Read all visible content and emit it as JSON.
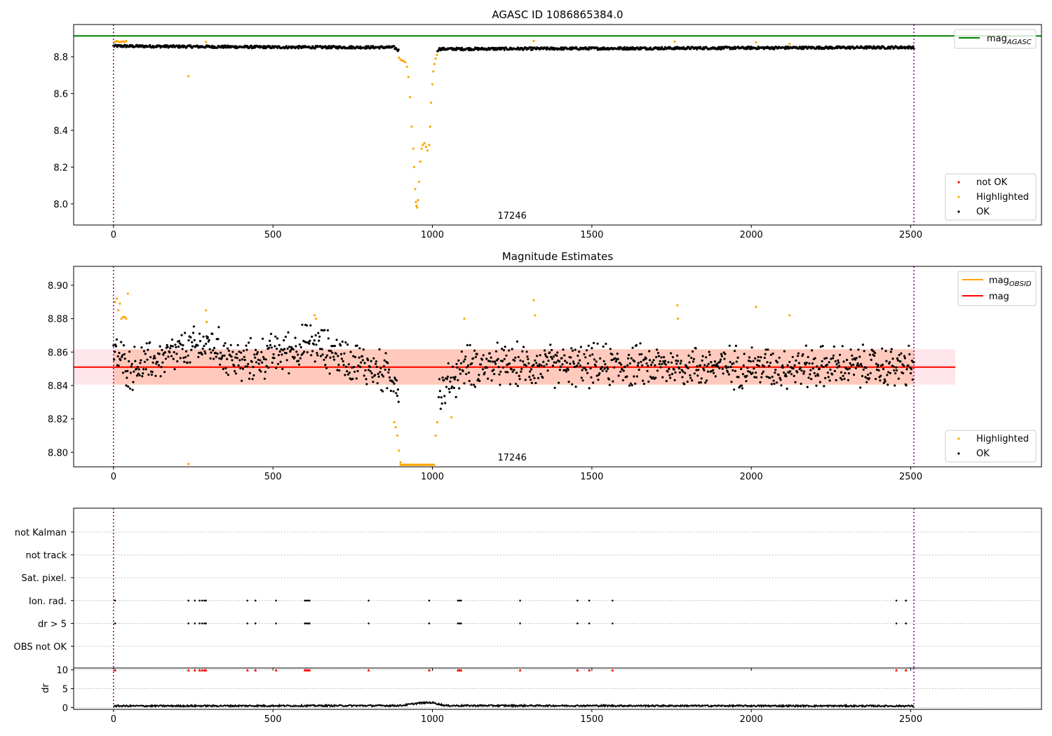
{
  "chart_data": [
    {
      "type": "scatter",
      "title": "AGASC ID 1086865384.0",
      "xlim": [
        -125,
        2910
      ],
      "ylim": [
        7.885,
        8.975
      ],
      "xticks": [
        0,
        500,
        1000,
        1500,
        2000,
        2500
      ],
      "yticks": [
        8.0,
        8.2,
        8.4,
        8.6,
        8.8
      ],
      "ytick_labels": [
        "8.0",
        "8.2",
        "8.4",
        "8.6",
        "8.8"
      ],
      "obsid_label": "17246",
      "obsid_label_x": 1250,
      "obs_bounds": [
        0,
        2510
      ],
      "hline": {
        "name": "mag$_{AGASC}$",
        "label": "mag",
        "sub": "AGASC",
        "y": 8.913,
        "x_range": [
          -125,
          2910
        ],
        "color": "#008000"
      },
      "legend_top": {
        "position": "upper right",
        "entries": [
          "mag AGASC"
        ]
      },
      "legend_bottom": {
        "position": "lower right",
        "entries": [
          {
            "name": "not OK",
            "color": "#ff0000"
          },
          {
            "name": "Highlighted",
            "color": "#ffa500"
          },
          {
            "name": "OK",
            "color": "#000000"
          }
        ]
      },
      "series": {
        "ok": {
          "color": "#000000",
          "x_range": [
            0,
            2510
          ],
          "profile": [
            [
              0,
              8.858
            ],
            [
              500,
              8.852
            ],
            [
              880,
              8.851
            ],
            [
              905,
              8.82
            ],
            [
              1010,
              8.82
            ],
            [
              1020,
              8.842
            ],
            [
              2510,
              8.851
            ]
          ],
          "jitter": 0.014
        },
        "highlighted": {
          "color": "#ffa500",
          "points": [
            [
              5,
              8.882
            ],
            [
              10,
              8.885
            ],
            [
              15,
              8.882
            ],
            [
              20,
              8.879
            ],
            [
              25,
              8.882
            ],
            [
              30,
              8.883
            ],
            [
              35,
              8.88
            ],
            [
              40,
              8.886
            ],
            [
              235,
              8.694
            ],
            [
              290,
              8.88
            ],
            [
              895,
              8.795
            ],
            [
              900,
              8.784
            ],
            [
              905,
              8.78
            ],
            [
              910,
              8.776
            ],
            [
              915,
              8.77
            ],
            [
              920,
              8.745
            ],
            [
              925,
              8.69
            ],
            [
              930,
              8.58
            ],
            [
              935,
              8.42
            ],
            [
              940,
              8.3
            ],
            [
              943,
              8.2
            ],
            [
              946,
              8.08
            ],
            [
              948,
              8.01
            ],
            [
              950,
              7.99
            ],
            [
              952,
              7.98
            ],
            [
              955,
              8.02
            ],
            [
              958,
              8.12
            ],
            [
              962,
              8.23
            ],
            [
              966,
              8.3
            ],
            [
              970,
              8.32
            ],
            [
              975,
              8.33
            ],
            [
              980,
              8.31
            ],
            [
              985,
              8.29
            ],
            [
              990,
              8.32
            ],
            [
              993,
              8.42
            ],
            [
              996,
              8.55
            ],
            [
              1000,
              8.65
            ],
            [
              1003,
              8.72
            ],
            [
              1006,
              8.76
            ],
            [
              1010,
              8.79
            ],
            [
              1014,
              8.81
            ],
            [
              1318,
              8.886
            ],
            [
              1760,
              8.882
            ],
            [
              2015,
              8.878
            ],
            [
              2120,
              8.87
            ]
          ]
        },
        "not_ok": {
          "color": "#ff0000",
          "points": []
        }
      }
    },
    {
      "type": "scatter",
      "title": "Magnitude Estimates",
      "xlim": [
        -125,
        2910
      ],
      "ylim": [
        8.7913,
        8.9113
      ],
      "xticks": [
        0,
        500,
        1000,
        1500,
        2000,
        2500
      ],
      "yticks": [
        8.8,
        8.82,
        8.84,
        8.86,
        8.88,
        8.9
      ],
      "ytick_labels": [
        "8.80",
        "8.82",
        "8.84",
        "8.86",
        "8.88",
        "8.90"
      ],
      "obsid_label": "17246",
      "obsid_label_x": 1250,
      "obs_bounds": [
        0,
        2510
      ],
      "lines": [
        {
          "name": "mag$_{OBSID}$",
          "label": "mag",
          "sub": "OBSID",
          "y": 8.851,
          "x_range": [
            0,
            2510
          ],
          "color": "#ffa500"
        },
        {
          "name": "mag",
          "label": "mag",
          "sub": "",
          "y": 8.851,
          "x_range": [
            -125,
            2640
          ],
          "color": "#ff0000"
        }
      ],
      "bands": [
        {
          "y_range": [
            8.8405,
            8.8617
          ],
          "x_range": [
            -125,
            2640
          ],
          "color": "#ffc0cb"
        },
        {
          "y_range": [
            8.8405,
            8.8617
          ],
          "x_range": [
            0,
            2510
          ],
          "color": "#ffa07a"
        }
      ],
      "legend_top": {
        "position": "upper right",
        "entries": [
          "mag OBSID",
          "mag"
        ]
      },
      "legend_bottom": {
        "position": "lower right",
        "entries": [
          {
            "name": "Highlighted",
            "color": "#ffa500"
          },
          {
            "name": "OK",
            "color": "#000000"
          }
        ]
      },
      "series": {
        "ok": {
          "color": "#000000",
          "x_range": [
            0,
            2510
          ],
          "profile": [
            [
              0,
              8.86
            ],
            [
              50,
              8.85
            ],
            [
              300,
              8.865
            ],
            [
              400,
              8.853
            ],
            [
              620,
              8.865
            ],
            [
              880,
              8.845
            ],
            [
              905,
              8.835
            ],
            [
              1000,
              8.835
            ],
            [
              1025,
              8.835
            ],
            [
              1100,
              8.852
            ],
            [
              2510,
              8.851
            ]
          ],
          "jitter": 0.012
        },
        "highlighted": {
          "color": "#ffa500",
          "points": [
            [
              5,
              8.89
            ],
            [
              10,
              8.892
            ],
            [
              15,
              8.885
            ],
            [
              20,
              8.889
            ],
            [
              25,
              8.88
            ],
            [
              30,
              8.881
            ],
            [
              35,
              8.881
            ],
            [
              40,
              8.88
            ],
            [
              45,
              8.895
            ],
            [
              235,
              8.793
            ],
            [
              290,
              8.885
            ],
            [
              292,
              8.878
            ],
            [
              630,
              8.882
            ],
            [
              635,
              8.88
            ],
            [
              880,
              8.818
            ],
            [
              885,
              8.815
            ],
            [
              890,
              8.81
            ],
            [
              895,
              8.801
            ],
            [
              900,
              8.794
            ],
            [
              1060,
              8.821
            ],
            [
              1010,
              8.81
            ],
            [
              1015,
              8.818
            ],
            [
              1100,
              8.88
            ],
            [
              1318,
              8.891
            ],
            [
              1322,
              8.882
            ],
            [
              1768,
              8.888
            ],
            [
              1770,
              8.88
            ],
            [
              2015,
              8.887
            ],
            [
              2120,
              8.882
            ]
          ]
        },
        "clipped": {
          "color": "#ffa500",
          "x_range": [
            900,
            1005
          ],
          "y": 8.7925
        }
      }
    },
    {
      "type": "scatter",
      "xlim": [
        -125,
        2910
      ],
      "xticks": [
        0,
        500,
        1000,
        1500,
        2000,
        2500
      ],
      "obs_bounds": [
        0,
        2510
      ],
      "flag_rows": [
        "not Kalman",
        "not track",
        "Sat. pixel.",
        "Ion. rad.",
        "dr > 5",
        "OBS not OK"
      ],
      "flag_points": {
        "Ion. rad.": [
          5,
          235,
          255,
          270,
          278,
          285,
          290,
          420,
          445,
          510,
          600,
          605,
          610,
          615,
          800,
          990,
          1080,
          1085,
          1090,
          1275,
          1455,
          1492,
          1565,
          2455,
          2485
        ],
        "dr > 5": [
          5,
          235,
          255,
          270,
          278,
          285,
          290,
          420,
          445,
          510,
          600,
          605,
          610,
          615,
          800,
          990,
          1080,
          1085,
          1090,
          1275,
          1455,
          1492,
          1565,
          2455,
          2485
        ]
      }
    },
    {
      "type": "line",
      "ylabel": "dr",
      "xlim": [
        -125,
        2910
      ],
      "ylim": [
        -0.5,
        10.5
      ],
      "xticks": [
        0,
        500,
        1000,
        1500,
        2000,
        2500
      ],
      "xtick_labels": [
        "0",
        "500",
        "1000",
        "1500",
        "2000",
        "2500"
      ],
      "yticks": [
        0,
        5,
        10
      ],
      "ytick_labels": [
        "0",
        "5",
        "10"
      ],
      "obs_bounds": [
        0,
        2510
      ],
      "series": {
        "dr": {
          "color": "#000000",
          "profile": [
            [
              0,
              0.4
            ],
            [
              900,
              0.5
            ],
            [
              960,
              1.2
            ],
            [
              1000,
              1.3
            ],
            [
              1040,
              0.5
            ],
            [
              2510,
              0.4
            ]
          ],
          "jitter": 0.4
        },
        "clipped_markers": {
          "color": "#ff0000",
          "y": 10,
          "x": [
            5,
            235,
            255,
            270,
            278,
            285,
            290,
            420,
            445,
            510,
            600,
            605,
            610,
            615,
            800,
            990,
            1080,
            1085,
            1090,
            1275,
            1455,
            1492,
            1565,
            2455,
            2485
          ]
        }
      }
    }
  ]
}
